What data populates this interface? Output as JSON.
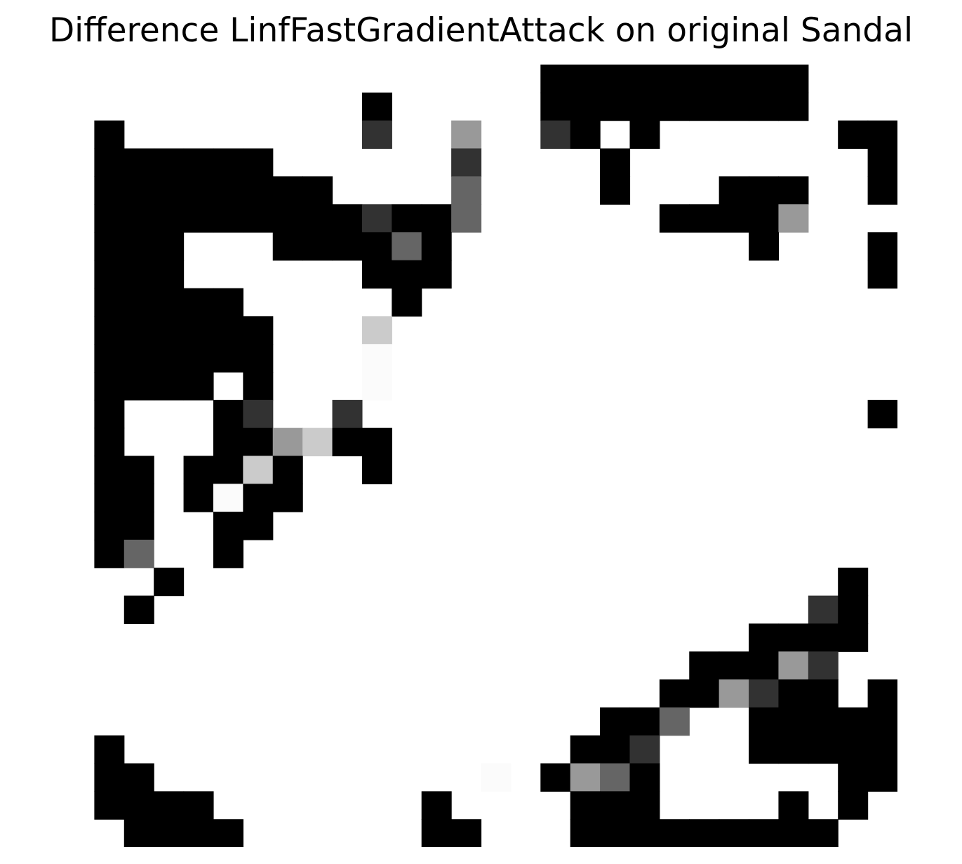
{
  "title": "Difference LinfFastGradientAttack on original Sandal",
  "chart_data": {
    "type": "heatmap",
    "title": "Difference LinfFastGradientAttack on original Sandal",
    "colormap": "grayscale (0 = white, 255 = black)",
    "axes_visible": false,
    "rows": 28,
    "cols": 28,
    "cells": [
      [
        0,
        0,
        0,
        0,
        0,
        0,
        0,
        0,
        0,
        0,
        0,
        0,
        0,
        0,
        0,
        0,
        255,
        255,
        255,
        255,
        255,
        255,
        255,
        255,
        255,
        0,
        0,
        0
      ],
      [
        0,
        0,
        0,
        0,
        0,
        0,
        0,
        0,
        0,
        0,
        255,
        0,
        0,
        0,
        0,
        0,
        255,
        255,
        255,
        255,
        255,
        255,
        255,
        255,
        255,
        0,
        0,
        0
      ],
      [
        0,
        255,
        0,
        0,
        0,
        0,
        0,
        0,
        0,
        0,
        205,
        0,
        0,
        102,
        0,
        0,
        205,
        255,
        0,
        255,
        0,
        0,
        0,
        0,
        0,
        0,
        255,
        255
      ],
      [
        0,
        255,
        255,
        255,
        255,
        255,
        255,
        0,
        0,
        0,
        0,
        0,
        0,
        205,
        0,
        0,
        0,
        0,
        255,
        0,
        0,
        0,
        0,
        0,
        0,
        0,
        0,
        255
      ],
      [
        0,
        255,
        255,
        255,
        255,
        255,
        255,
        255,
        255,
        0,
        0,
        0,
        0,
        154,
        0,
        0,
        0,
        0,
        255,
        0,
        0,
        0,
        255,
        255,
        255,
        0,
        0,
        255
      ],
      [
        0,
        255,
        255,
        255,
        255,
        255,
        255,
        255,
        255,
        255,
        205,
        255,
        255,
        154,
        0,
        0,
        0,
        0,
        0,
        0,
        255,
        255,
        255,
        255,
        102,
        0,
        0,
        0
      ],
      [
        0,
        255,
        255,
        255,
        0,
        0,
        0,
        255,
        255,
        255,
        255,
        154,
        255,
        0,
        0,
        0,
        0,
        0,
        0,
        0,
        0,
        0,
        0,
        255,
        0,
        0,
        0,
        255
      ],
      [
        0,
        255,
        255,
        255,
        0,
        0,
        0,
        0,
        0,
        0,
        255,
        255,
        255,
        0,
        0,
        0,
        0,
        0,
        0,
        0,
        0,
        0,
        0,
        0,
        0,
        0,
        0,
        255
      ],
      [
        0,
        255,
        255,
        255,
        255,
        255,
        0,
        0,
        0,
        0,
        0,
        255,
        0,
        0,
        0,
        0,
        0,
        0,
        0,
        0,
        0,
        0,
        0,
        0,
        0,
        0,
        0,
        0
      ],
      [
        0,
        255,
        255,
        255,
        255,
        255,
        255,
        0,
        0,
        0,
        52,
        0,
        0,
        0,
        0,
        0,
        0,
        0,
        0,
        0,
        0,
        0,
        0,
        0,
        0,
        0,
        0,
        0
      ],
      [
        0,
        255,
        255,
        255,
        255,
        255,
        255,
        0,
        0,
        0,
        4,
        0,
        0,
        0,
        0,
        0,
        0,
        0,
        0,
        0,
        0,
        0,
        0,
        0,
        0,
        0,
        0,
        0
      ],
      [
        0,
        255,
        255,
        255,
        255,
        0,
        255,
        0,
        0,
        0,
        4,
        0,
        0,
        0,
        0,
        0,
        0,
        0,
        0,
        0,
        0,
        0,
        0,
        0,
        0,
        0,
        0,
        0
      ],
      [
        0,
        255,
        0,
        0,
        0,
        255,
        205,
        0,
        0,
        205,
        0,
        0,
        0,
        0,
        0,
        0,
        0,
        0,
        0,
        0,
        0,
        0,
        0,
        0,
        0,
        0,
        0,
        255
      ],
      [
        0,
        255,
        0,
        0,
        0,
        255,
        255,
        102,
        52,
        255,
        255,
        0,
        0,
        0,
        0,
        0,
        0,
        0,
        0,
        0,
        0,
        0,
        0,
        0,
        0,
        0,
        0,
        0
      ],
      [
        0,
        255,
        255,
        0,
        255,
        255,
        52,
        255,
        0,
        0,
        255,
        0,
        0,
        0,
        0,
        0,
        0,
        0,
        0,
        0,
        0,
        0,
        0,
        0,
        0,
        0,
        0,
        0
      ],
      [
        0,
        255,
        255,
        0,
        255,
        4,
        255,
        255,
        0,
        0,
        0,
        0,
        0,
        0,
        0,
        0,
        0,
        0,
        0,
        0,
        0,
        0,
        0,
        0,
        0,
        0,
        0,
        0
      ],
      [
        0,
        255,
        255,
        0,
        0,
        255,
        255,
        0,
        0,
        0,
        0,
        0,
        0,
        0,
        0,
        0,
        0,
        0,
        0,
        0,
        0,
        0,
        0,
        0,
        0,
        0,
        0,
        0
      ],
      [
        0,
        255,
        154,
        0,
        0,
        255,
        0,
        0,
        0,
        0,
        0,
        0,
        0,
        0,
        0,
        0,
        0,
        0,
        0,
        0,
        0,
        0,
        0,
        0,
        0,
        0,
        0,
        0
      ],
      [
        0,
        0,
        0,
        255,
        0,
        0,
        0,
        0,
        0,
        0,
        0,
        0,
        0,
        0,
        0,
        0,
        0,
        0,
        0,
        0,
        0,
        0,
        0,
        0,
        0,
        0,
        255,
        0
      ],
      [
        0,
        0,
        255,
        0,
        0,
        0,
        0,
        0,
        0,
        0,
        0,
        0,
        0,
        0,
        0,
        0,
        0,
        0,
        0,
        0,
        0,
        0,
        0,
        0,
        0,
        205,
        255,
        0
      ],
      [
        0,
        0,
        0,
        0,
        0,
        0,
        0,
        0,
        0,
        0,
        0,
        0,
        0,
        0,
        0,
        0,
        0,
        0,
        0,
        0,
        0,
        0,
        0,
        255,
        255,
        255,
        255,
        0
      ],
      [
        0,
        0,
        0,
        0,
        0,
        0,
        0,
        0,
        0,
        0,
        0,
        0,
        0,
        0,
        0,
        0,
        0,
        0,
        0,
        0,
        0,
        255,
        255,
        255,
        102,
        205,
        0,
        0
      ],
      [
        0,
        0,
        0,
        0,
        0,
        0,
        0,
        0,
        0,
        0,
        0,
        0,
        0,
        0,
        0,
        0,
        0,
        0,
        0,
        0,
        255,
        255,
        102,
        205,
        255,
        255,
        0,
        255
      ],
      [
        0,
        0,
        0,
        0,
        0,
        0,
        0,
        0,
        0,
        0,
        0,
        0,
        0,
        0,
        0,
        0,
        0,
        0,
        255,
        255,
        154,
        0,
        0,
        255,
        255,
        255,
        255,
        255
      ],
      [
        0,
        255,
        0,
        0,
        0,
        0,
        0,
        0,
        0,
        0,
        0,
        0,
        0,
        0,
        0,
        0,
        0,
        255,
        255,
        205,
        0,
        0,
        0,
        255,
        255,
        255,
        255,
        255
      ],
      [
        0,
        255,
        255,
        0,
        0,
        0,
        0,
        0,
        0,
        0,
        0,
        0,
        0,
        0,
        4,
        0,
        255,
        102,
        154,
        255,
        0,
        0,
        0,
        0,
        0,
        0,
        255,
        255
      ],
      [
        0,
        255,
        255,
        255,
        255,
        0,
        0,
        0,
        0,
        0,
        0,
        0,
        255,
        0,
        0,
        0,
        0,
        255,
        255,
        255,
        0,
        0,
        0,
        0,
        255,
        0,
        255,
        0
      ],
      [
        0,
        0,
        255,
        255,
        255,
        255,
        0,
        0,
        0,
        0,
        0,
        0,
        255,
        255,
        0,
        0,
        0,
        255,
        255,
        255,
        255,
        255,
        255,
        255,
        255,
        255,
        0,
        0
      ]
    ]
  }
}
